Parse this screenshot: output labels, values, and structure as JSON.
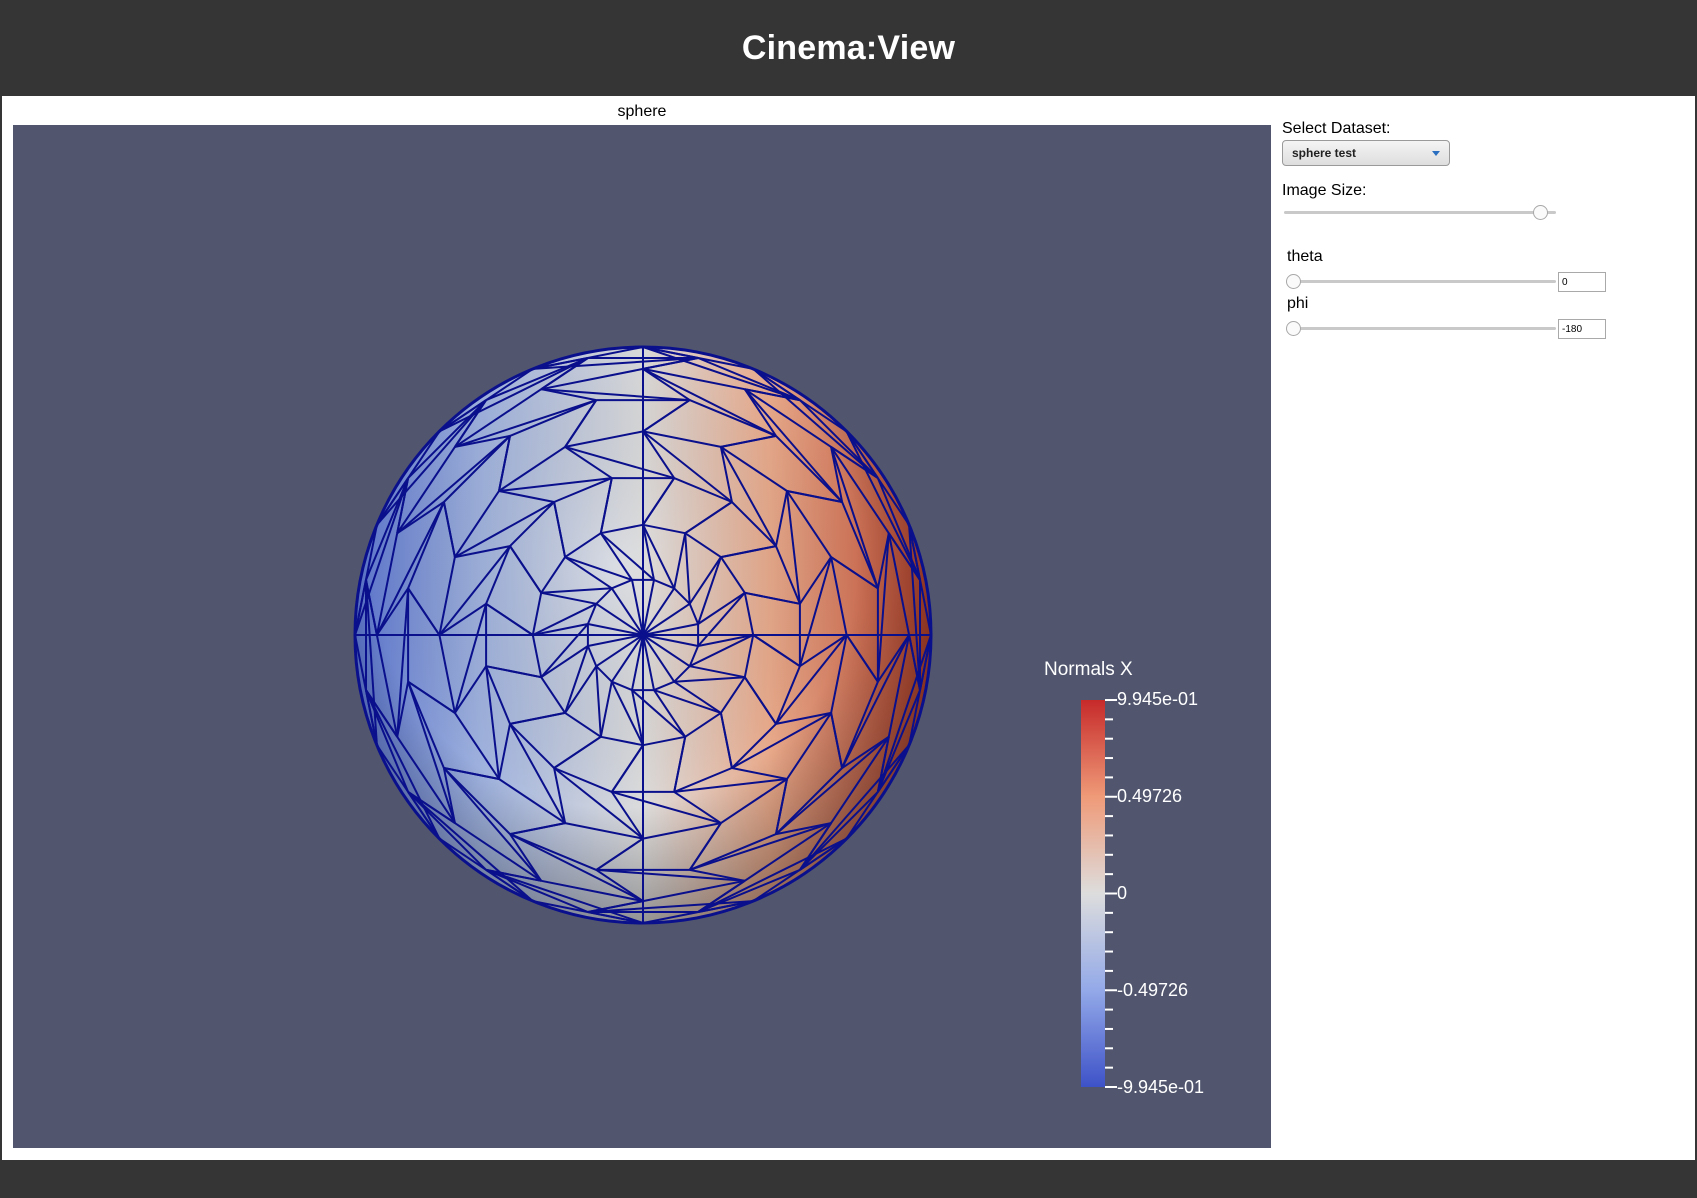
{
  "app": {
    "title": "Cinema:View"
  },
  "view": {
    "title": "sphere"
  },
  "colorbar": {
    "title": "Normals X",
    "labels": [
      "9.945e-01",
      "0.49726",
      "0",
      "-0.49726",
      "-9.945e-01"
    ]
  },
  "controls": {
    "dataset_label": "Select Dataset:",
    "dataset_value": "sphere test",
    "image_size_label": "Image Size:",
    "image_size_level": 0.97,
    "params": [
      {
        "name": "theta",
        "value": "0",
        "level": 0.0
      },
      {
        "name": "phi",
        "value": "-180",
        "level": 0.0
      }
    ]
  },
  "colors": {
    "header": "#353535",
    "viewport_bg": "#51566e",
    "mesh_line": "#0a0f8c",
    "cmap_high": "#b40426",
    "cmap_mid": "#dddddd",
    "cmap_low": "#3b4cc0"
  }
}
